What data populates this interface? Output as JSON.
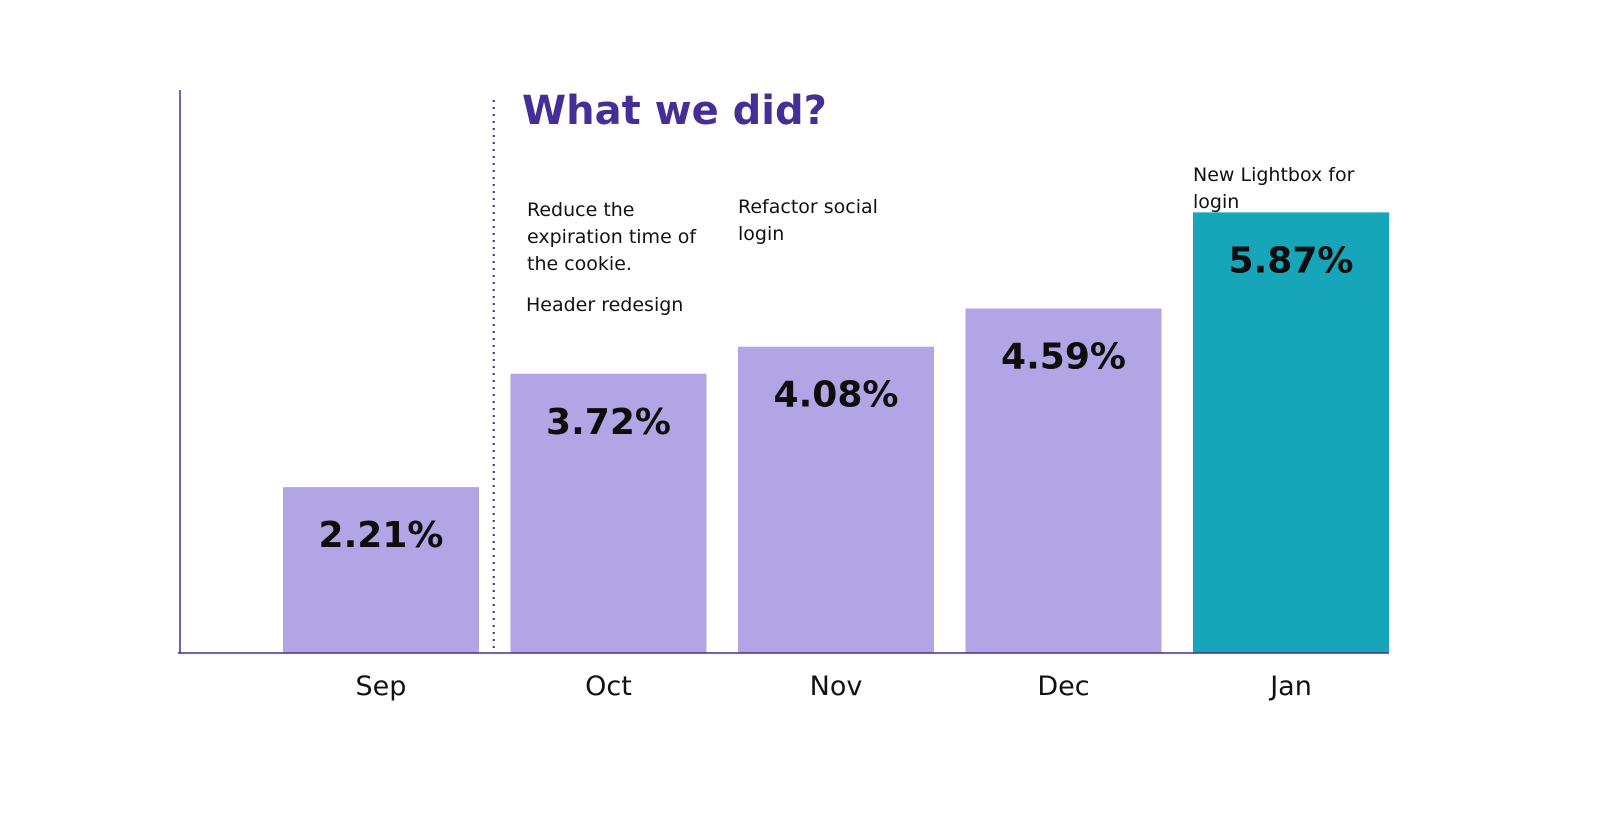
{
  "chart_data": {
    "type": "bar",
    "heading": "What we did?",
    "categories": [
      "Sep",
      "Oct",
      "Nov",
      "Dec",
      "Jan"
    ],
    "values": [
      2.21,
      3.72,
      4.08,
      4.59,
      5.87
    ],
    "data_labels": [
      "2.21%",
      "3.72%",
      "4.08%",
      "4.59%",
      "5.87%"
    ],
    "colors": [
      "#b3a5e5",
      "#b3a5e5",
      "#b3a5e5",
      "#b3a5e5",
      "#17a5b9"
    ],
    "axis_color": "#452f96",
    "heading_color": "#452f96",
    "ylim": [
      0,
      7.5
    ],
    "grid": false,
    "annotations": [
      {
        "category": "Oct",
        "lines": [
          "Reduce the",
          "expiration time of",
          "the cookie."
        ]
      },
      {
        "category": "Oct",
        "lines": [
          "Header redesign"
        ]
      },
      {
        "category": "Nov",
        "lines": [
          "Refactor social",
          "login"
        ]
      },
      {
        "category": "Jan",
        "lines": [
          "New Lightbox for",
          "login"
        ]
      }
    ],
    "divider": {
      "between": [
        "Sep",
        "Oct"
      ],
      "style": "dotted"
    }
  }
}
